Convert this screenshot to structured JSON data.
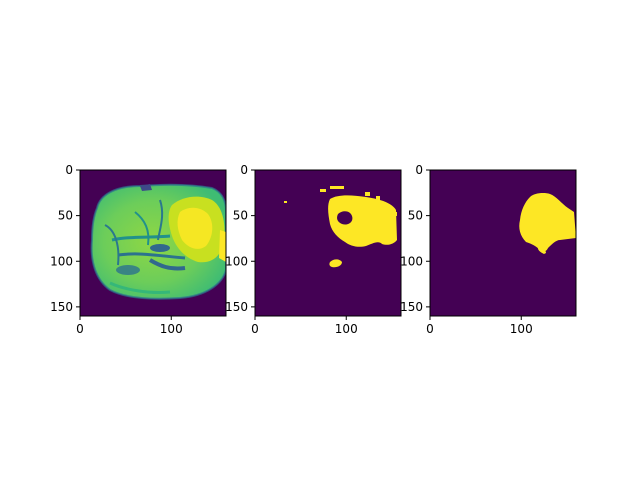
{
  "figure": {
    "background": "#ffffff",
    "colormap": {
      "low": "#440154",
      "mid": "#21918c",
      "high": "#fde725",
      "bright": "#b5de2b"
    }
  },
  "panels": [
    {
      "id": "mri-slice",
      "description_icon": "brain-scan-icon",
      "x_ticks": [
        {
          "value": 0,
          "label": "0"
        },
        {
          "value": 100,
          "label": "100"
        }
      ],
      "y_ticks": [
        {
          "value": 0,
          "label": "0"
        },
        {
          "value": 50,
          "label": "50"
        },
        {
          "value": 100,
          "label": "100"
        },
        {
          "value": 150,
          "label": "150"
        }
      ],
      "xlim": [
        0,
        160
      ],
      "ylim": [
        160,
        0
      ]
    },
    {
      "id": "predicted-mask",
      "x_ticks": [
        {
          "value": 0,
          "label": "0"
        },
        {
          "value": 100,
          "label": "100"
        }
      ],
      "y_ticks": [
        {
          "value": 0,
          "label": "0"
        },
        {
          "value": 50,
          "label": "50"
        },
        {
          "value": 100,
          "label": "100"
        },
        {
          "value": 150,
          "label": "150"
        }
      ],
      "xlim": [
        0,
        160
      ],
      "ylim": [
        160,
        0
      ]
    },
    {
      "id": "ground-truth-mask",
      "x_ticks": [
        {
          "value": 0,
          "label": "0"
        },
        {
          "value": 100,
          "label": "100"
        }
      ],
      "y_ticks": [
        {
          "value": 0,
          "label": "0"
        },
        {
          "value": 50,
          "label": "50"
        },
        {
          "value": 100,
          "label": "100"
        },
        {
          "value": 150,
          "label": "150"
        }
      ],
      "xlim": [
        0,
        160
      ],
      "ylim": [
        160,
        0
      ]
    }
  ]
}
